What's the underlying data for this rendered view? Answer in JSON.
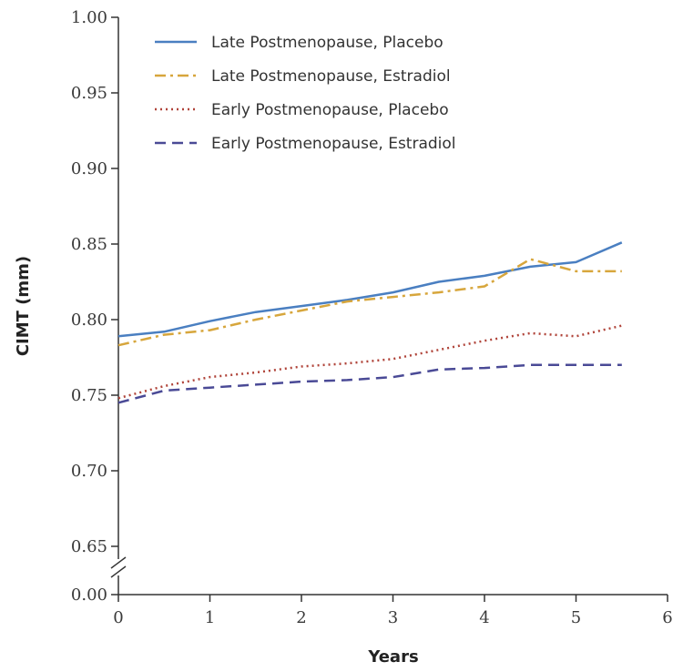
{
  "chart_data": {
    "type": "line",
    "title": "",
    "xlabel": "Years",
    "ylabel": "CIMT (mm)",
    "xlim": [
      0,
      6
    ],
    "ylim": [
      0.65,
      1.0
    ],
    "y_axis_break": true,
    "x_ticks": [
      "0",
      "1",
      "2",
      "3",
      "4",
      "5",
      "6"
    ],
    "y_ticks": [
      "1.00",
      "0.95",
      "0.90",
      "0.85",
      "0.80",
      "0.75",
      "0.70",
      "0.65",
      "0.00"
    ],
    "grid": false,
    "legend_position": "top-left",
    "series": [
      {
        "name": "Late Postmenopause, Placebo",
        "color": "#4a7fc1",
        "dash": "solid",
        "x": [
          0,
          0.5,
          1,
          1.5,
          2,
          2.5,
          3,
          3.5,
          4,
          4.5,
          5,
          5.5
        ],
        "y": [
          0.789,
          0.792,
          0.799,
          0.805,
          0.809,
          0.813,
          0.818,
          0.825,
          0.829,
          0.835,
          0.838,
          0.851
        ]
      },
      {
        "name": "Late Postmenopause, Estradiol",
        "color": "#d7a63c",
        "dash": "dashdot",
        "x": [
          0,
          0.5,
          1,
          1.5,
          2,
          2.5,
          3,
          3.5,
          4,
          4.5,
          5,
          5.5
        ],
        "y": [
          0.783,
          0.79,
          0.793,
          0.8,
          0.806,
          0.812,
          0.815,
          0.818,
          0.822,
          0.84,
          0.832,
          0.832
        ]
      },
      {
        "name": "Early Postmenopause, Placebo",
        "color": "#b0443a",
        "dash": "dotted",
        "x": [
          0,
          0.5,
          1,
          1.5,
          2,
          2.5,
          3,
          3.5,
          4,
          4.5,
          5,
          5.5
        ],
        "y": [
          0.748,
          0.756,
          0.762,
          0.765,
          0.769,
          0.771,
          0.774,
          0.78,
          0.786,
          0.791,
          0.789,
          0.796
        ]
      },
      {
        "name": "Early Postmenopause, Estradiol",
        "color": "#4a4a96",
        "dash": "dashed",
        "x": [
          0,
          0.5,
          1,
          1.5,
          2,
          2.5,
          3,
          3.5,
          4,
          4.5,
          5,
          5.5
        ],
        "y": [
          0.745,
          0.753,
          0.755,
          0.757,
          0.759,
          0.76,
          0.762,
          0.767,
          0.768,
          0.77,
          0.77,
          0.77
        ]
      }
    ]
  }
}
